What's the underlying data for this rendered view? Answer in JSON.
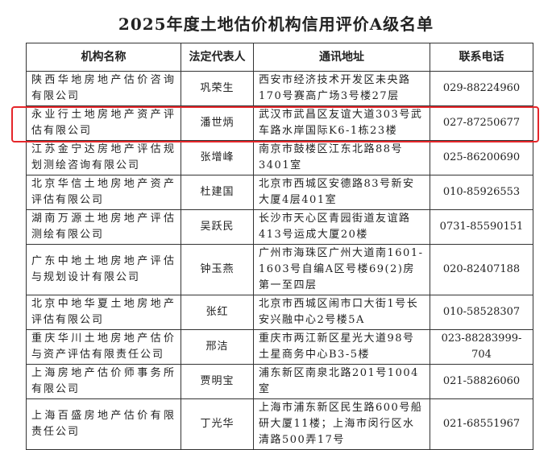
{
  "title": "2025年度土地估价机构信用评价A级名单",
  "headers": [
    "机构名称",
    "法定代表人",
    "通讯地址",
    "联系电话"
  ],
  "rows": [
    {
      "name": "陕西华地房地产估价咨询有限公司",
      "rep": "巩荣生",
      "addr": "西安市经济技术开发区未央路170号赛高广场3号楼27层",
      "phone": "029-88224960"
    },
    {
      "name": "永业行土地房地产资产评估有限公司",
      "rep": "潘世炳",
      "addr": "武汉市武昌区友谊大道303号武车路水岸国际K6-1栋23楼",
      "phone": "027-87250677"
    },
    {
      "name": "江苏金宁达房地产评估规划测绘咨询有限公司",
      "rep": "张增峰",
      "addr": "南京市鼓楼区江东北路88号3401室",
      "phone": "025-86200690"
    },
    {
      "name": "北京华信土地房地产资产评估有限公司",
      "rep": "杜建国",
      "addr": "北京市西城区安德路83号新安大厦4层401室",
      "phone": "010-85926553"
    },
    {
      "name": "湖南万源土地房地产评估测绘有限公司",
      "rep": "吴跃民",
      "addr": "长沙市天心区青园街道友谊路413号运成大厦20楼",
      "phone": "0731-85590151"
    },
    {
      "name": "广东中地土地房地产评估与规划设计有限公司",
      "rep": "钟玉燕",
      "addr": "广州市海珠区广州大道南1601-1603号自编A区号楼69(2)房第一至四层",
      "phone": "020-82407188"
    },
    {
      "name": "北京中地华夏土地房地产评估有限公司",
      "rep": "张红",
      "addr": "北京市西城区闹市口大街1号长安兴融中心2号楼5A",
      "phone": "010-58528307"
    },
    {
      "name": "重庆华川土地房地产估价与资产评估有限责任公司",
      "rep": "邢洁",
      "addr": "重庆市两江新区星光大道98号土星商务中心B3-5楼",
      "phone": "023-88283999-704"
    },
    {
      "name": "上海房地产估价师事务所有限公司",
      "rep": "贾明宝",
      "addr": "浦东新区南泉北路201号1004室",
      "phone": "021-58826060"
    },
    {
      "name": "上海百盛房地产估价有限责任公司",
      "rep": "丁光华",
      "addr": "上海市浦东新区民生路600号船研大厦11楼；上海市闵行区水清路500弄17号",
      "phone": "021-68551967"
    }
  ],
  "highlight_color": "#e5262a",
  "highlighted_row": 1
}
